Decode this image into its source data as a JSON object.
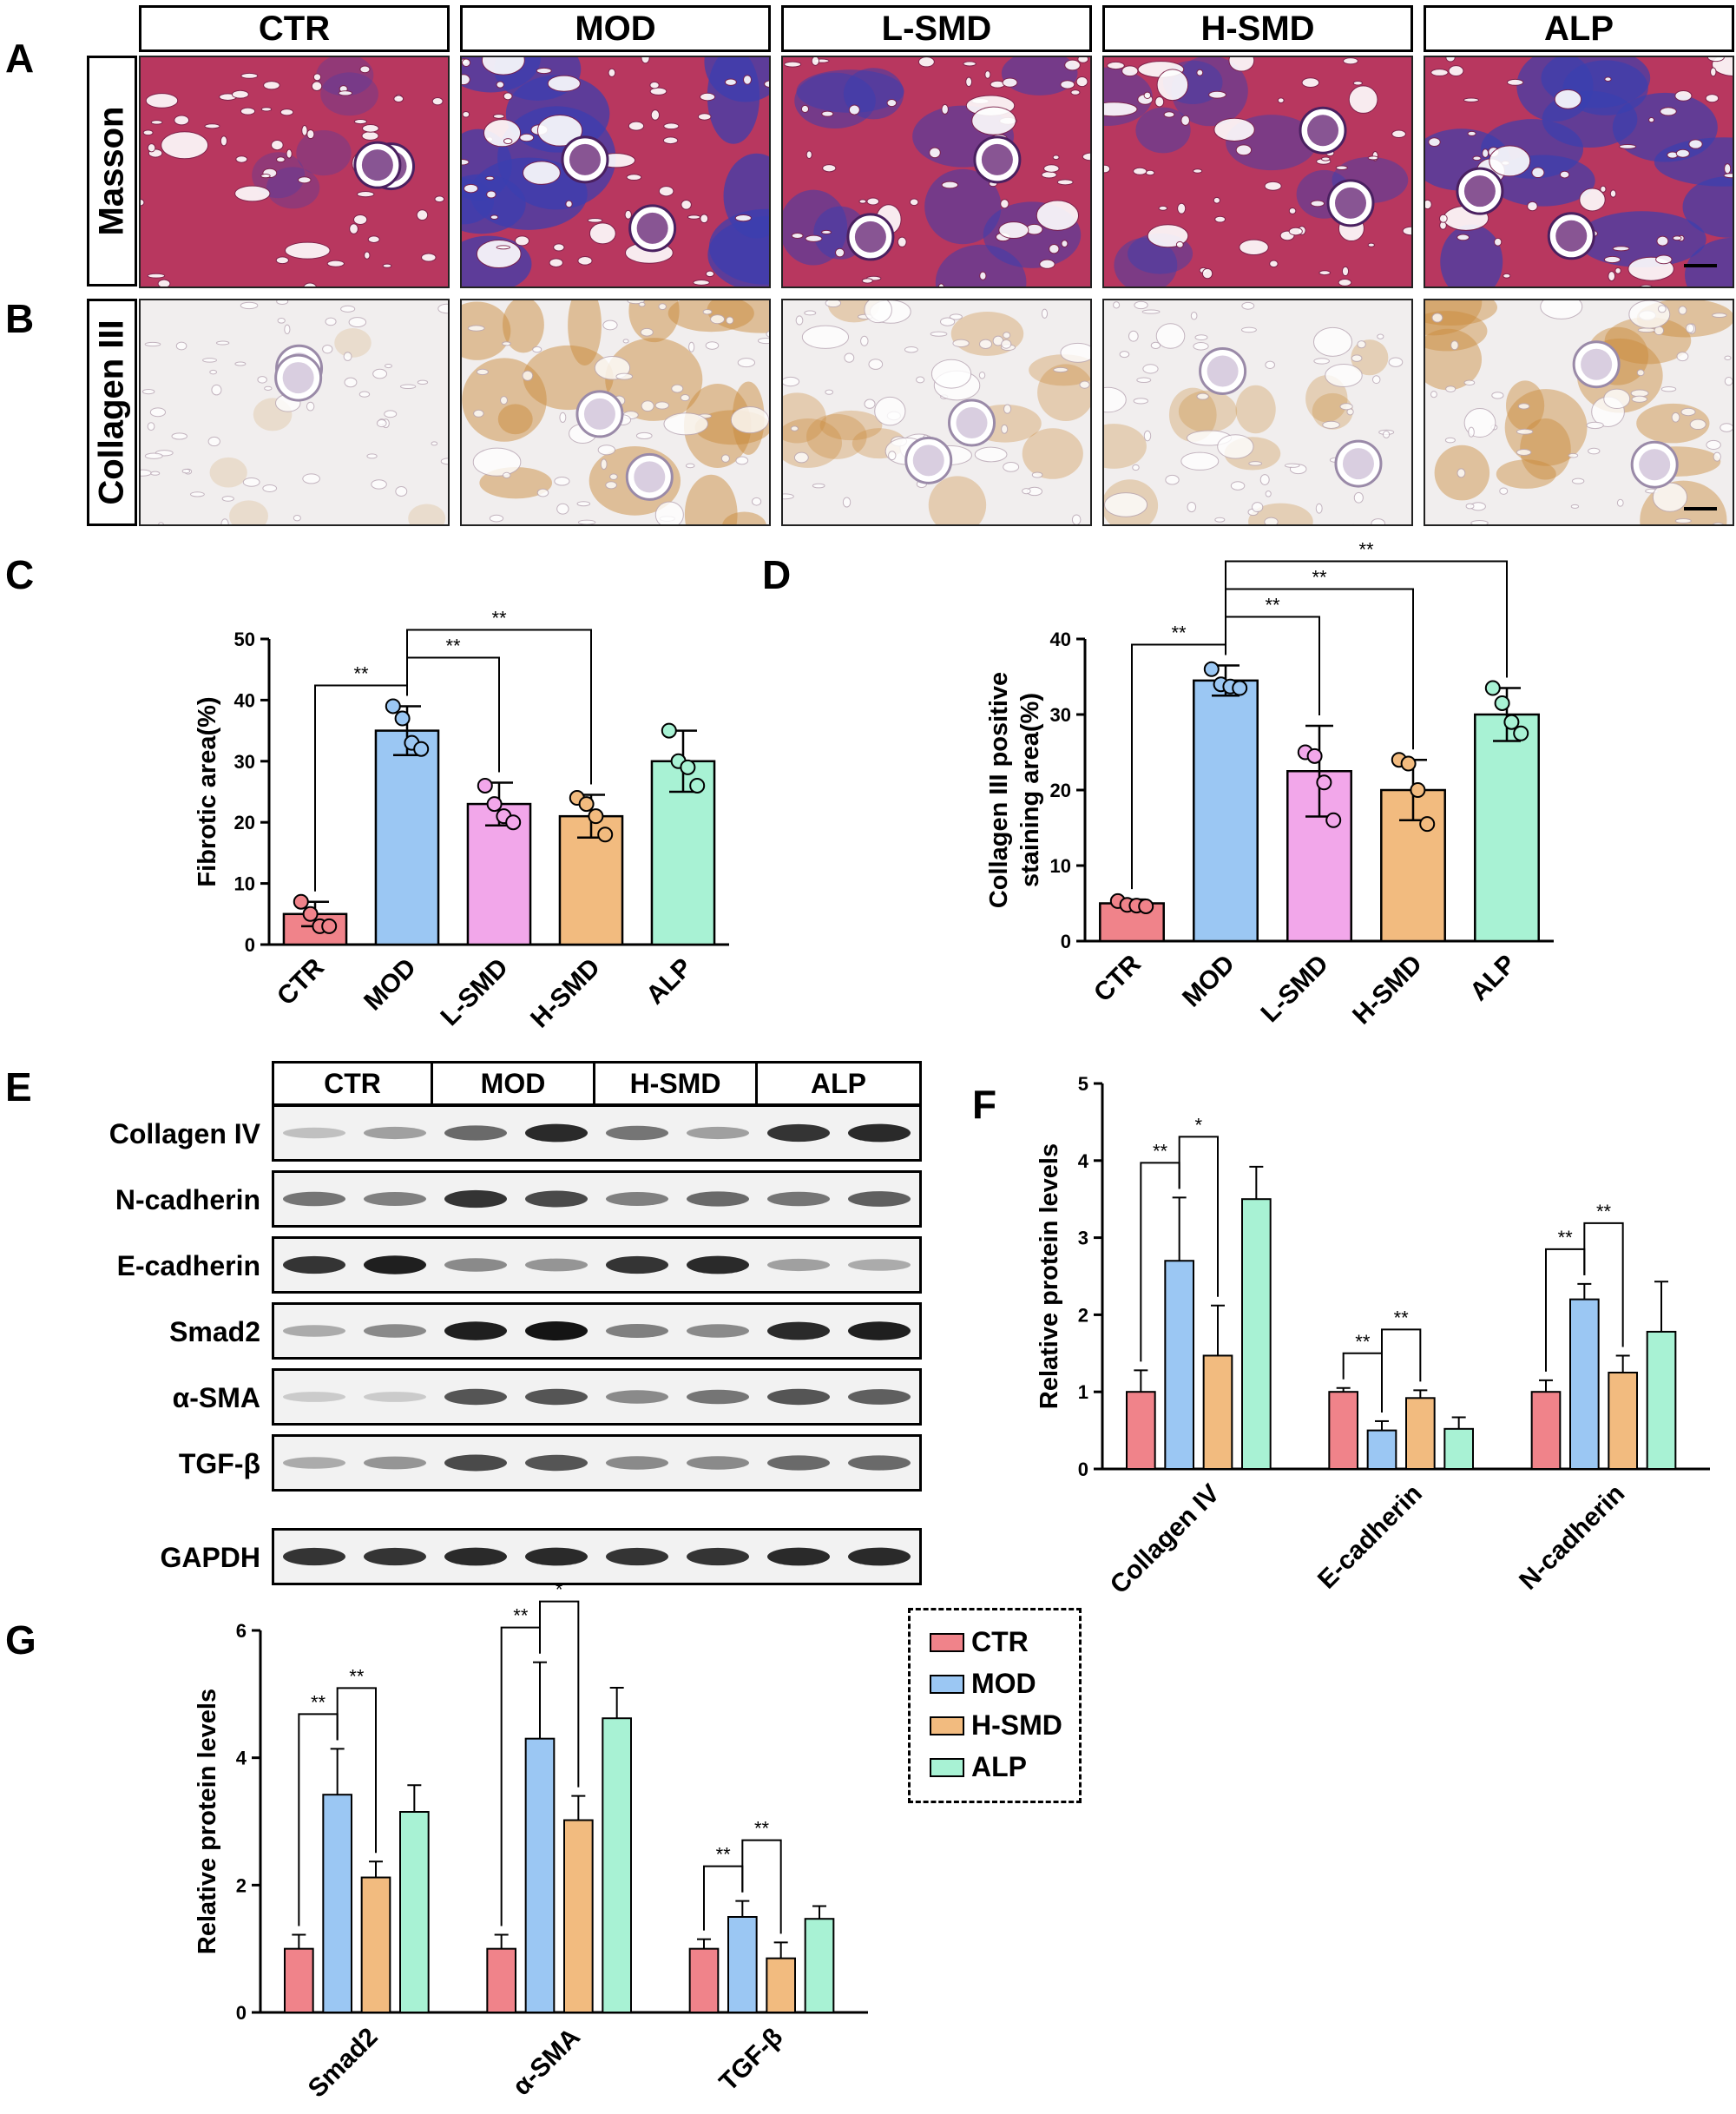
{
  "panel_labels": [
    "A",
    "B",
    "C",
    "D",
    "E",
    "F",
    "G"
  ],
  "histology": {
    "columns": [
      "CTR",
      "MOD",
      "L-SMD",
      "H-SMD",
      "ALP"
    ],
    "rows": [
      "Masson",
      "Collagen III"
    ]
  },
  "western_blot": {
    "groups": [
      "CTR",
      "MOD",
      "H-SMD",
      "ALP"
    ],
    "proteins": [
      "Collagen IV",
      "N-cadherin",
      "E-cadherin",
      "Smad2",
      "α-SMA",
      "TGF-β",
      "GAPDH"
    ]
  },
  "colors": {
    "CTR": "#f0838a",
    "MOD": "#9bc7f3",
    "L-SMD": "#f2a7ea",
    "H-SMD": "#f2bb7f",
    "ALP": "#a8f2d4",
    "masson_base": "#b8375f",
    "masson_fibrosis": "#3a3fb0",
    "ihc_base": "#f1eeee",
    "ihc_positive": "#c98a3a"
  },
  "legend": {
    "items": [
      "CTR",
      "MOD",
      "H-SMD",
      "ALP"
    ]
  },
  "chart_data": [
    {
      "id": "C",
      "type": "bar",
      "ylabel": "Fibrotic  area(%)",
      "ylim": [
        0,
        50
      ],
      "yticks": [
        0,
        10,
        20,
        30,
        40,
        50
      ],
      "categories": [
        "CTR",
        "MOD",
        "L-SMD",
        "H-SMD",
        "ALP"
      ],
      "values": [
        5,
        35,
        23,
        21,
        30
      ],
      "errors": [
        2,
        4,
        3.5,
        3.5,
        5
      ],
      "points": [
        [
          7,
          5,
          3,
          3
        ],
        [
          39,
          37,
          33,
          32
        ],
        [
          26,
          23,
          21,
          20
        ],
        [
          24,
          23,
          21,
          18
        ],
        [
          35,
          30,
          29,
          26
        ]
      ],
      "significance": [
        {
          "from": "CTR",
          "to": "MOD",
          "label": "**"
        },
        {
          "from": "MOD",
          "to": "L-SMD",
          "label": "**"
        },
        {
          "from": "MOD",
          "to": "H-SMD",
          "label": "**"
        }
      ]
    },
    {
      "id": "D",
      "type": "bar",
      "ylabel": "Collagen III positive staining area(%)",
      "ylim": [
        0,
        40
      ],
      "yticks": [
        0,
        10,
        20,
        30,
        40
      ],
      "categories": [
        "CTR",
        "MOD",
        "L-SMD",
        "H-SMD",
        "ALP"
      ],
      "values": [
        5,
        34.5,
        22.5,
        20,
        30
      ],
      "errors": [
        0.5,
        2,
        6,
        4,
        3.5
      ],
      "points": [
        [
          5.3,
          4.8,
          4.7,
          4.6
        ],
        [
          36,
          34,
          33.7,
          33.5
        ],
        [
          25,
          24.5,
          21,
          16
        ],
        [
          24,
          23.5,
          20,
          15.5
        ],
        [
          33.5,
          31.5,
          29,
          27.5
        ]
      ],
      "significance": [
        {
          "from": "CTR",
          "to": "MOD",
          "label": "**"
        },
        {
          "from": "MOD",
          "to": "L-SMD",
          "label": "**"
        },
        {
          "from": "MOD",
          "to": "H-SMD",
          "label": "**"
        },
        {
          "from": "MOD",
          "to": "ALP",
          "label": "**"
        }
      ]
    },
    {
      "id": "F",
      "type": "bar",
      "ylabel": "Relative protein levels",
      "ylim": [
        0,
        5
      ],
      "yticks": [
        0,
        1,
        2,
        3,
        4,
        5
      ],
      "categories": [
        "Collagen IV",
        "E-cadherin",
        "N-cadherin"
      ],
      "series": [
        {
          "name": "CTR",
          "values": [
            1,
            1,
            1
          ],
          "errors": [
            0.28,
            0.05,
            0.15
          ]
        },
        {
          "name": "MOD",
          "values": [
            2.7,
            0.5,
            2.2
          ],
          "errors": [
            0.82,
            0.12,
            0.2
          ]
        },
        {
          "name": "H-SMD",
          "values": [
            1.47,
            0.92,
            1.25
          ],
          "errors": [
            0.65,
            0.1,
            0.22
          ]
        },
        {
          "name": "ALP",
          "values": [
            3.5,
            0.52,
            1.78
          ],
          "errors": [
            0.42,
            0.15,
            0.65
          ]
        }
      ],
      "significance": [
        {
          "category": 0,
          "from": "CTR",
          "to": "MOD",
          "label": "**"
        },
        {
          "category": 0,
          "from": "MOD",
          "to": "H-SMD",
          "label": "*"
        },
        {
          "category": 1,
          "from": "CTR",
          "to": "MOD",
          "label": "**"
        },
        {
          "category": 1,
          "from": "MOD",
          "to": "H-SMD",
          "label": "**"
        },
        {
          "category": 2,
          "from": "CTR",
          "to": "MOD",
          "label": "**"
        },
        {
          "category": 2,
          "from": "MOD",
          "to": "H-SMD",
          "label": "**"
        }
      ]
    },
    {
      "id": "G",
      "type": "bar",
      "ylabel": "Relative protein levels",
      "ylim": [
        0,
        6
      ],
      "yticks": [
        0,
        2,
        4,
        6
      ],
      "categories": [
        "Smad2",
        "α-SMA",
        "TGF-β"
      ],
      "series": [
        {
          "name": "CTR",
          "values": [
            1,
            1,
            1
          ],
          "errors": [
            0.22,
            0.22,
            0.15
          ]
        },
        {
          "name": "MOD",
          "values": [
            3.42,
            4.3,
            1.5
          ],
          "errors": [
            0.72,
            1.2,
            0.25
          ]
        },
        {
          "name": "H-SMD",
          "values": [
            2.12,
            3.02,
            0.85
          ],
          "errors": [
            0.25,
            0.38,
            0.25
          ]
        },
        {
          "name": "ALP",
          "values": [
            3.15,
            4.62,
            1.47
          ],
          "errors": [
            0.42,
            0.48,
            0.2
          ]
        }
      ],
      "significance": [
        {
          "category": 0,
          "from": "CTR",
          "to": "MOD",
          "label": "**"
        },
        {
          "category": 0,
          "from": "MOD",
          "to": "H-SMD",
          "label": "**"
        },
        {
          "category": 1,
          "from": "CTR",
          "to": "MOD",
          "label": "**"
        },
        {
          "category": 1,
          "from": "MOD",
          "to": "H-SMD",
          "label": "*"
        },
        {
          "category": 2,
          "from": "CTR",
          "to": "MOD",
          "label": "**"
        },
        {
          "category": 2,
          "from": "MOD",
          "to": "H-SMD",
          "label": "**"
        }
      ]
    }
  ]
}
